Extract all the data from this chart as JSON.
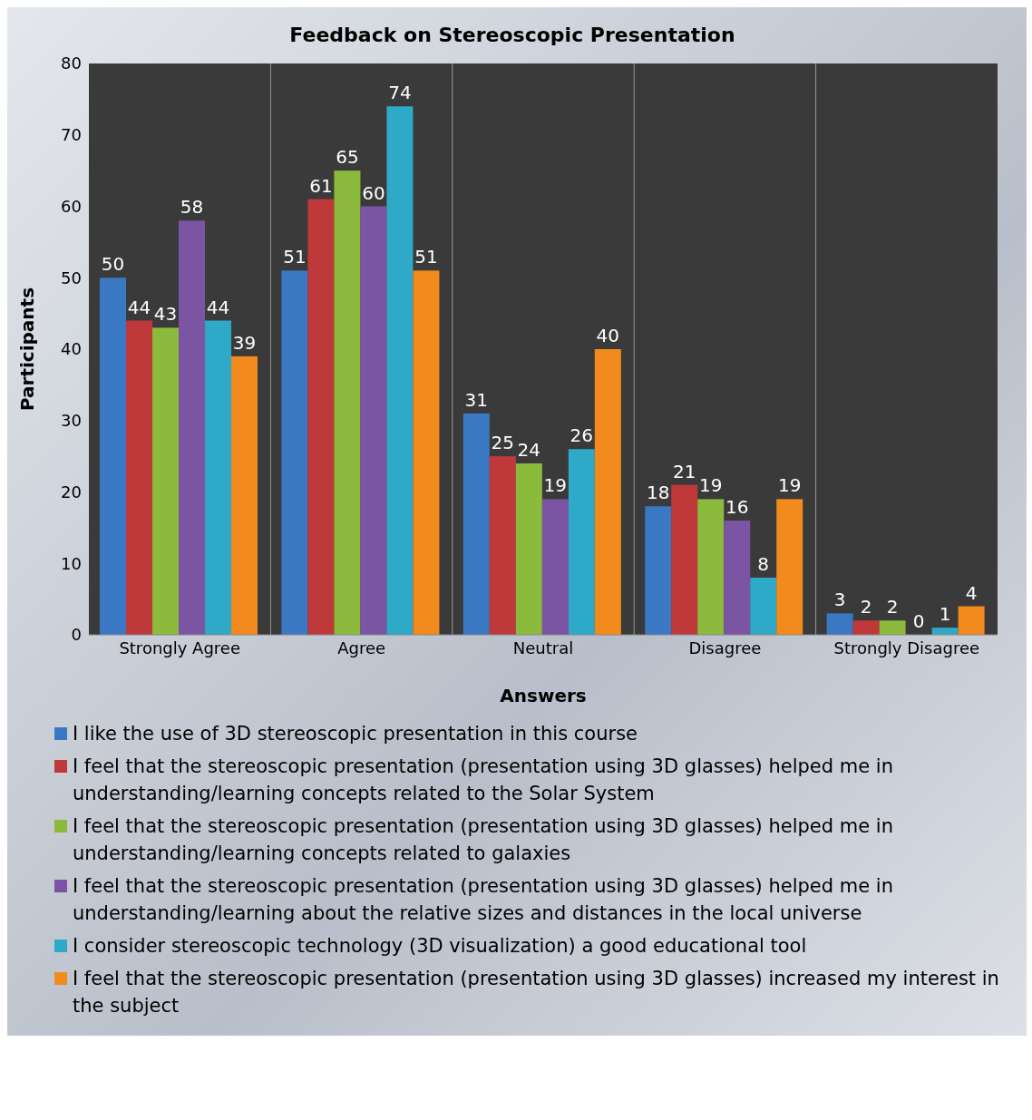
{
  "chart_data": {
    "type": "bar",
    "title": "Feedback on Stereoscopic Presentation",
    "xlabel": "Answers",
    "ylabel": "Participants",
    "categories": [
      "Strongly Agree",
      "Agree",
      "Neutral",
      "Disagree",
      "Strongly Disagree"
    ],
    "series": [
      {
        "name": "I like the use of 3D stereoscopic presentation in this course",
        "color": "#3a78c4",
        "values": [
          50,
          51,
          31,
          18,
          3
        ]
      },
      {
        "name": "I feel that the stereoscopic presentation (presentation using 3D glasses) helped me in understanding/learning concepts related to the Solar System",
        "color": "#c0393a",
        "values": [
          44,
          61,
          25,
          21,
          2
        ]
      },
      {
        "name": "I feel that the stereoscopic presentation (presentation using 3D glasses) helped me in understanding/learning concepts related to galaxies",
        "color": "#8cba3c",
        "values": [
          43,
          65,
          24,
          19,
          2
        ]
      },
      {
        "name": "I feel that the stereoscopic presentation (presentation using 3D glasses) helped me in understanding/learning about the relative sizes and distances in the local universe",
        "color": "#7b54a3",
        "values": [
          58,
          60,
          19,
          16,
          0
        ]
      },
      {
        "name": "I consider stereoscopic technology (3D visualization) a good educational tool",
        "color": "#2eaac8",
        "values": [
          44,
          74,
          26,
          8,
          1
        ]
      },
      {
        "name": "I feel that the stereoscopic presentation (presentation using 3D glasses) increased my interest in the subject",
        "color": "#f28a1e",
        "values": [
          39,
          51,
          40,
          19,
          4
        ]
      }
    ],
    "ylim": [
      0,
      80
    ],
    "yticks": [
      0,
      10,
      20,
      30,
      40,
      50,
      60,
      70,
      80
    ],
    "grid": "x",
    "data_labels": true,
    "legend": "bottom"
  }
}
